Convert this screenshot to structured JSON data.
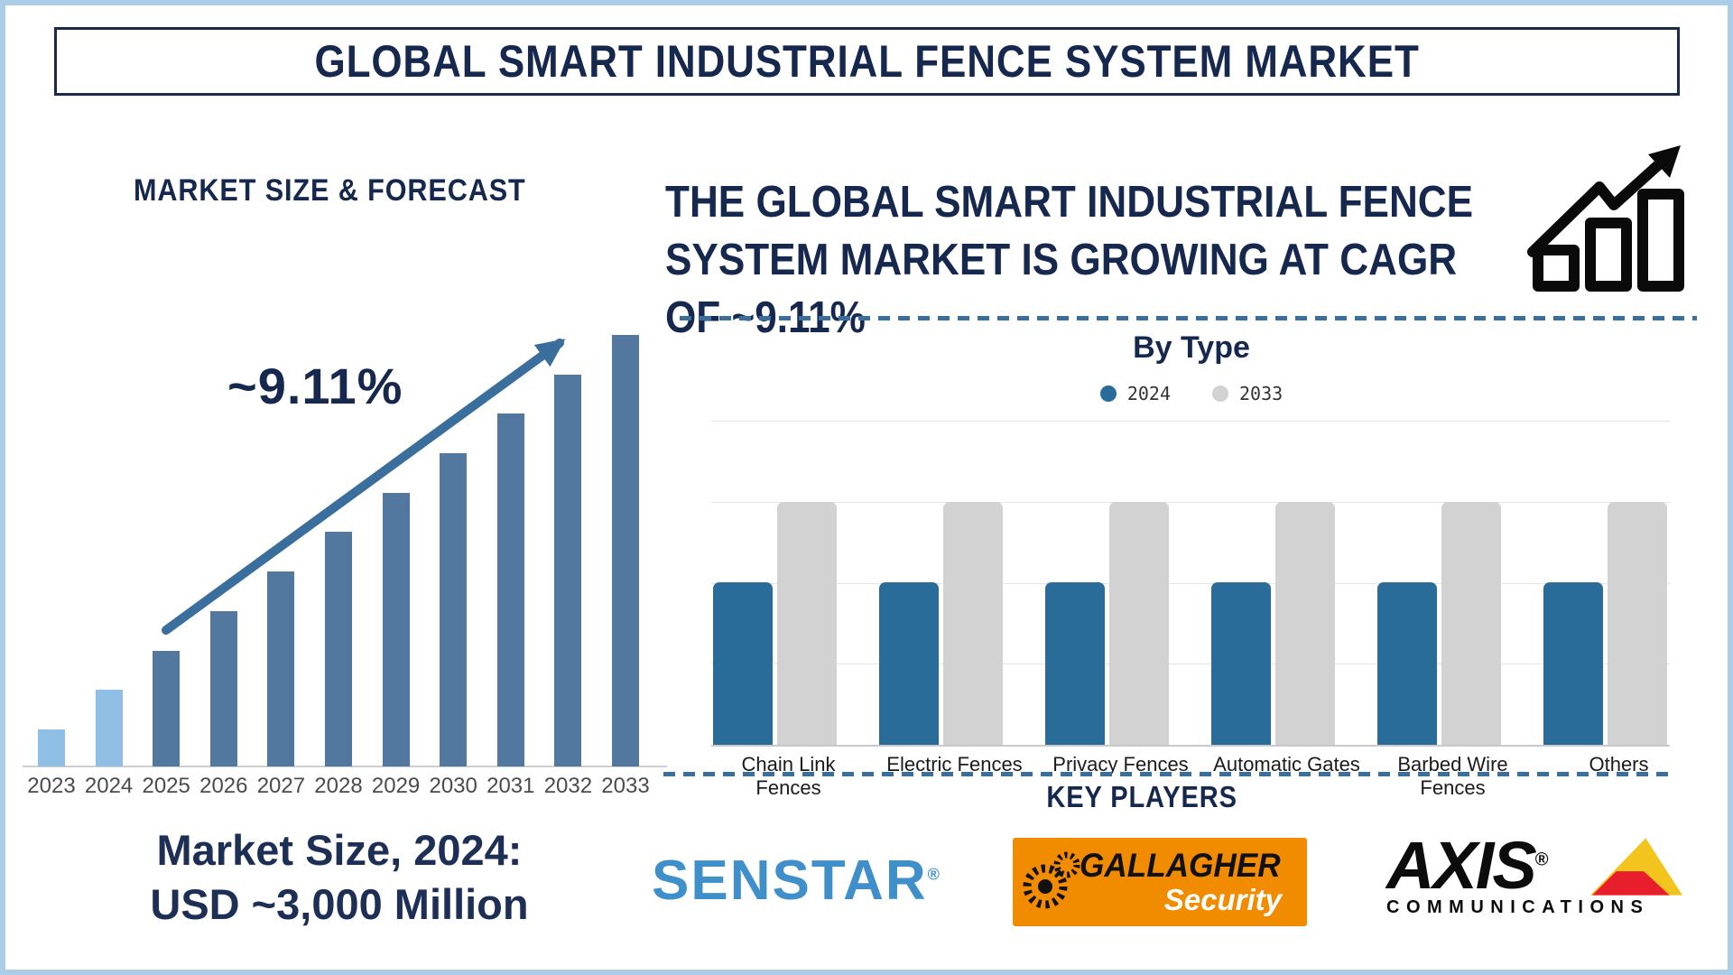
{
  "title": "GLOBAL SMART INDUSTRIAL FENCE SYSTEM MARKET",
  "colors": {
    "navy_text": "#16284e",
    "forecast_bar_early": "#8fbfe5",
    "forecast_bar_late": "#53789f",
    "arrow_and_dashes": "#3a6f9d",
    "bytype_2024": "#2a6c99",
    "bytype_2033": "#d2d2d2",
    "frame_border": "#abcde6"
  },
  "left_panel": {
    "heading": "MARKET SIZE & FORECAST",
    "cagr_annotation": "~9.11%",
    "market_size_line1": "Market Size, 2024:",
    "market_size_line2": "USD ~3,000 Million"
  },
  "right_panel": {
    "heading_lines": [
      "THE GLOBAL SMART INDUSTRIAL FENCE",
      "SYSTEM MARKET IS GROWING AT CAGR",
      "OF ~9.11%"
    ],
    "growth_icon": "bar-chart-growth-arrow-icon"
  },
  "chart_data": [
    {
      "id": "market_forecast",
      "type": "bar",
      "title": "MARKET SIZE & FORECAST",
      "categories": [
        "2023",
        "2024",
        "2025",
        "2026",
        "2027",
        "2028",
        "2029",
        "2030",
        "2031",
        "2032",
        "2033"
      ],
      "values_relative": [
        8.6,
        17.8,
        26.8,
        36.0,
        45.2,
        54.4,
        63.4,
        72.6,
        81.8,
        90.8,
        100
      ],
      "unit": "schematic height index (2033 = 100), no value axis shown",
      "annotation": "~9.11%",
      "note": "Market Size, 2024: USD ~3,000 Million",
      "xlabel": "",
      "ylabel": "",
      "grid": false,
      "legend": "none"
    },
    {
      "id": "by_type",
      "type": "grouped_bar",
      "title": "By Type",
      "categories": [
        "Chain Link Fences",
        "Electric Fences",
        "Privacy Fences",
        "Automatic Gates",
        "Barbed Wire Fences",
        "Others"
      ],
      "series": [
        {
          "name": "2024",
          "color": "#2a6c99",
          "values": [
            2,
            2,
            2,
            2,
            2,
            2
          ]
        },
        {
          "name": "2033",
          "color": "#d2d2d2",
          "values": [
            3,
            3,
            3,
            3,
            3,
            3
          ]
        }
      ],
      "ylim": [
        0,
        4
      ],
      "unit": "schematic relative units, no value axis shown",
      "grid": true,
      "legend_position": "top"
    }
  ],
  "key_players": {
    "heading": "KEY PLAYERS",
    "logos": [
      {
        "name": "Senstar",
        "text": "SENSTAR",
        "registered": "®",
        "color": "#3e8fca"
      },
      {
        "name": "Gallagher Security",
        "line1": "GALLAGHER",
        "line2": "Security",
        "bg": "#f18b00"
      },
      {
        "name": "Axis Communications",
        "line1": "AXIS",
        "registered": "®",
        "line2": "COMMUNICATIONS",
        "triangle_yellow": "#f2c41d",
        "triangle_red": "#e81e2d"
      }
    ]
  }
}
